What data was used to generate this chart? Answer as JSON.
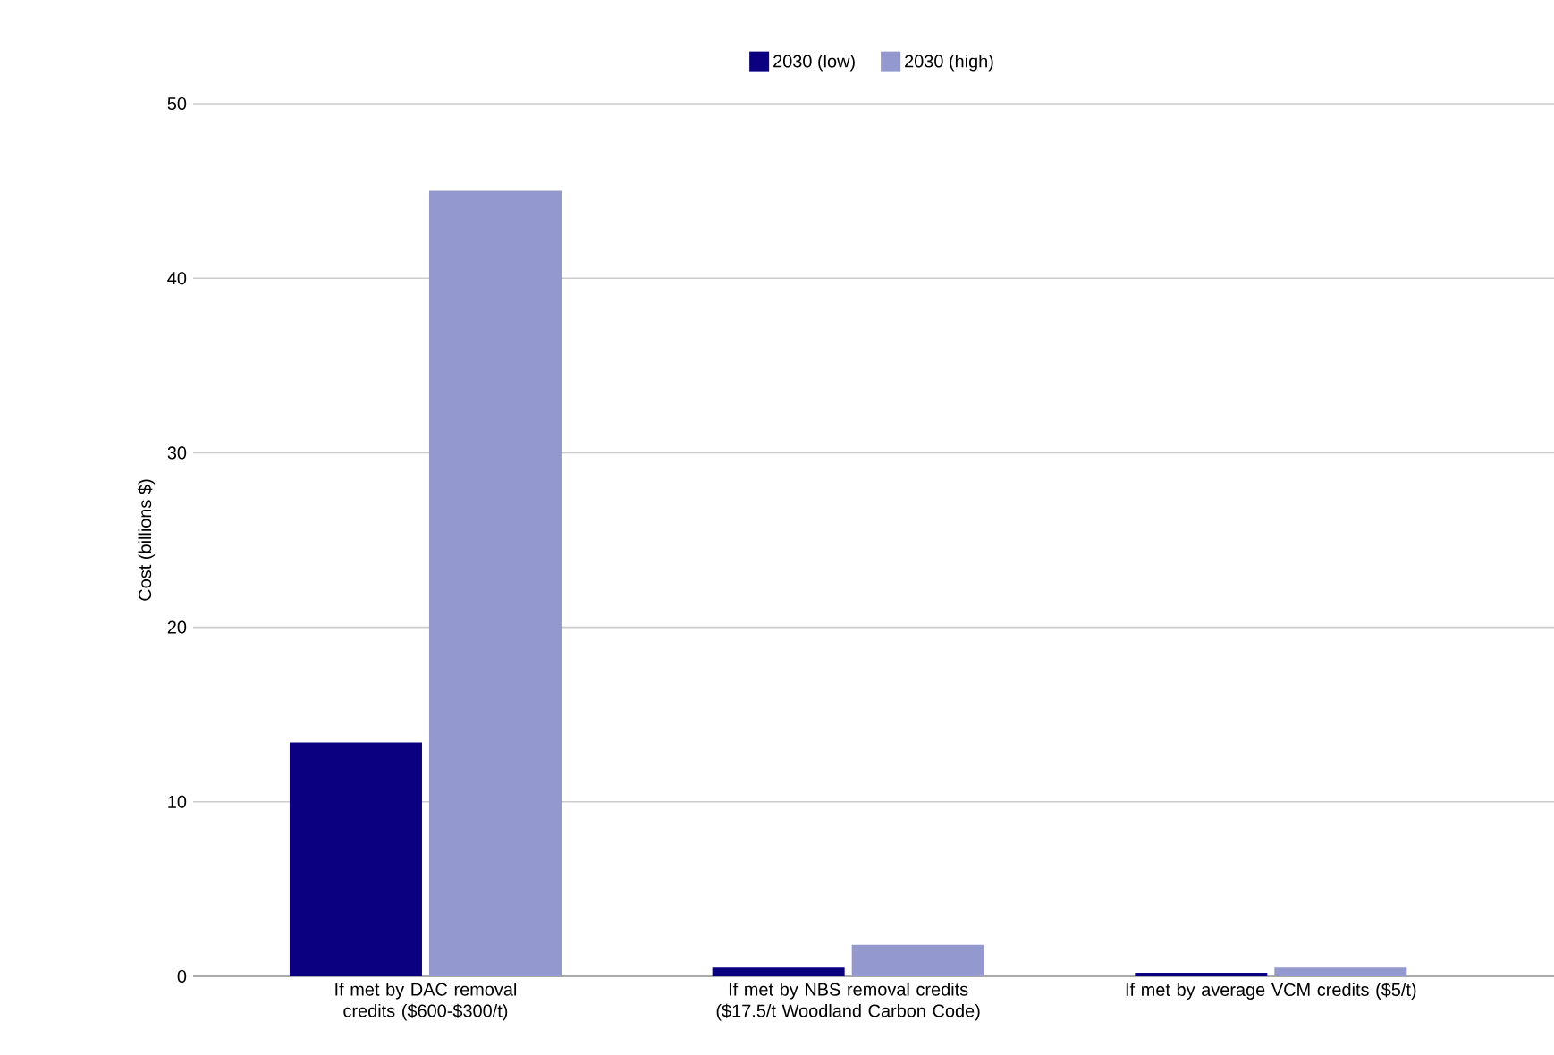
{
  "chart_data": {
    "type": "bar",
    "ylabel": "Cost (billions $)",
    "categories": [
      "If met by DAC removal credits ($600-$300/t)",
      "If met by NBS removal credits ($17.5/t Woodland Carbon Code)",
      "If met by average VCM credits ($5/t)"
    ],
    "series": [
      {
        "name": "2030 (low)",
        "color": "#0a0080",
        "values": [
          13.4,
          0.5,
          0.2
        ]
      },
      {
        "name": "2030 (high)",
        "color": "#9399cf",
        "values": [
          45,
          1.8,
          0.5
        ]
      }
    ],
    "ylim": [
      0,
      50
    ],
    "yticks": [
      0,
      10,
      20,
      30,
      40,
      50
    ],
    "grid": "y",
    "legend": "top"
  }
}
